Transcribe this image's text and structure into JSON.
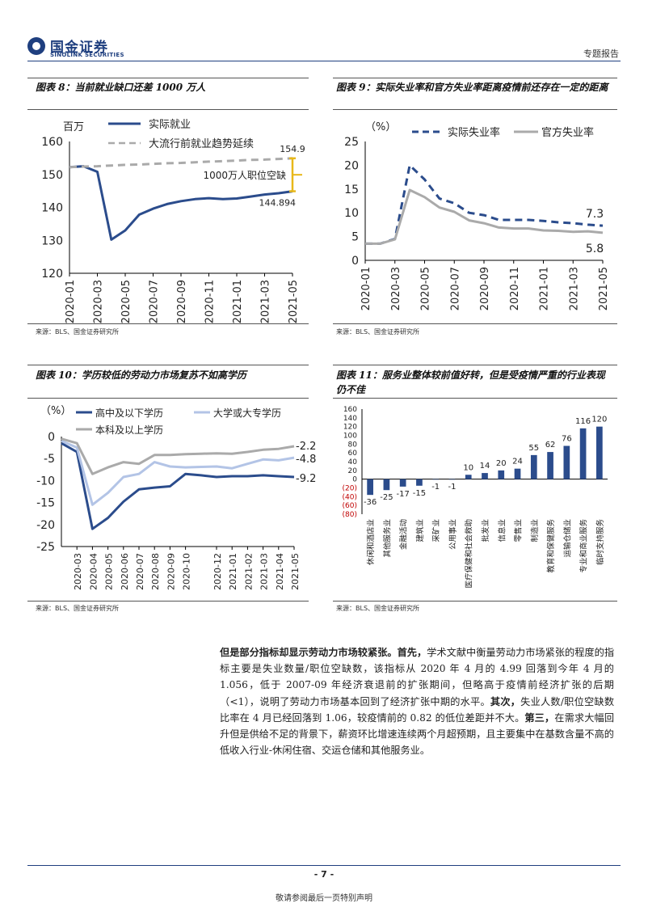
{
  "header": {
    "logo_cn": "国金证券",
    "logo_en": "SINOLINK SECURITIES",
    "report_type": "专题报告"
  },
  "charts": {
    "c8": {
      "title": "图表 8：当前就业缺口还差 1000 万人",
      "source": "来源：BLS、国金证券研究所"
    },
    "c9": {
      "title": "图表 9：实际失业率和官方失业率距离疫情前还存在一定的距离",
      "source": "来源：BLS、国金证券研究所"
    },
    "c10": {
      "title": "图表 10：学历较低的劳动力市场复苏不如高学历",
      "source": "来源：BLS、国金证券研究所"
    },
    "c11": {
      "title": "图表 11：服务业整体较前值好转，但是受疫情严重的行业表现仍不佳",
      "source": "来源：BLS、国金证券研究所"
    }
  },
  "chart_data": [
    {
      "id": "chart8",
      "type": "line",
      "unit_label": "百万",
      "x": [
        "2020-01",
        "2020-02",
        "2020-03",
        "2020-04",
        "2020-05",
        "2020-06",
        "2020-07",
        "2020-08",
        "2020-09",
        "2020-10",
        "2020-11",
        "2020-12",
        "2021-01",
        "2021-02",
        "2021-03",
        "2021-04",
        "2021-05"
      ],
      "xticks": [
        "2020-01",
        "2020-03",
        "2020-05",
        "2020-07",
        "2020-09",
        "2020-11",
        "2021-01",
        "2021-03",
        "2021-05"
      ],
      "ylim": [
        120,
        160
      ],
      "yticks": [
        120,
        130,
        140,
        150,
        160
      ],
      "series": [
        {
          "name": "实际就业",
          "color": "#2b4c8c",
          "dash": false,
          "values": [
            152.2,
            152.5,
            150.8,
            130.2,
            133.0,
            137.8,
            139.6,
            141.0,
            141.9,
            142.5,
            142.8,
            142.5,
            142.7,
            143.3,
            143.9,
            144.3,
            144.894
          ]
        },
        {
          "name": "大流行前就业趋势延续",
          "color": "#aaaaaa",
          "dash": true,
          "values": [
            152.2,
            152.4,
            152.5,
            152.7,
            152.9,
            153.0,
            153.2,
            153.4,
            153.5,
            153.7,
            153.9,
            154.0,
            154.2,
            154.4,
            154.5,
            154.7,
            154.9
          ]
        }
      ],
      "annotations": {
        "top_value": "154.9",
        "bottom_value": "144.894",
        "gap": "1000万人职位空缺"
      }
    },
    {
      "id": "chart9",
      "type": "line",
      "unit_label": "（%）",
      "x": [
        "2020-01",
        "2020-02",
        "2020-03",
        "2020-04",
        "2020-05",
        "2020-06",
        "2020-07",
        "2020-08",
        "2020-09",
        "2020-10",
        "2020-11",
        "2020-12",
        "2021-01",
        "2021-02",
        "2021-03",
        "2021-04",
        "2021-05"
      ],
      "xticks": [
        "2020-01",
        "2020-03",
        "2020-05",
        "2020-07",
        "2020-09",
        "2020-11",
        "2021-01",
        "2021-03",
        "2021-05"
      ],
      "ylim": [
        0,
        25
      ],
      "yticks": [
        0,
        5,
        10,
        15,
        20,
        25
      ],
      "series": [
        {
          "name": "实际失业率",
          "color": "#2b4c8c",
          "dash": true,
          "values": [
            3.5,
            3.5,
            4.5,
            20.0,
            17.0,
            13.0,
            12.0,
            10.0,
            9.5,
            8.5,
            8.5,
            8.5,
            8.3,
            8.0,
            7.8,
            7.5,
            7.3
          ]
        },
        {
          "name": "官方失业率",
          "color": "#aaaaaa",
          "dash": false,
          "values": [
            3.5,
            3.5,
            4.4,
            14.8,
            13.3,
            11.1,
            10.2,
            8.4,
            7.8,
            6.9,
            6.7,
            6.7,
            6.3,
            6.2,
            6.0,
            6.1,
            5.8
          ]
        }
      ],
      "annotations": {
        "end_a": "7.3",
        "end_b": "5.8"
      }
    },
    {
      "id": "chart10",
      "type": "line",
      "unit_label": "（%）",
      "x": [
        "2020-02",
        "2020-03",
        "2020-04",
        "2020-05",
        "2020-06",
        "2020-07",
        "2020-08",
        "2020-09",
        "2020-10",
        "2020-11",
        "2020-12",
        "2021-01",
        "2021-02",
        "2021-03",
        "2021-04",
        "2021-05"
      ],
      "xticks": [
        "2020-03",
        "2020-04",
        "2020-05",
        "2020-06",
        "2020-07",
        "2020-08",
        "2020-09",
        "2020-10",
        "2020-12",
        "2021-01",
        "2021-02",
        "2021-03",
        "2021-04",
        "2021-05"
      ],
      "ylim": [
        -25,
        0
      ],
      "yticks": [
        0,
        -5,
        -10,
        -15,
        -20,
        -25
      ],
      "series": [
        {
          "name": "高中及以下学历",
          "color": "#2b4c8c",
          "values": [
            -1.5,
            -3.5,
            -21.0,
            -18.5,
            -14.8,
            -12.0,
            -11.6,
            -11.3,
            -8.5,
            -8.8,
            -9.2,
            -9.0,
            -9.0,
            -8.8,
            -9.0,
            -9.2
          ]
        },
        {
          "name": "大学或大专学历",
          "color": "#b3c4e6",
          "values": [
            -1.0,
            -2.5,
            -15.5,
            -12.8,
            -9.2,
            -8.5,
            -5.8,
            -6.8,
            -7.0,
            -6.9,
            -6.8,
            -7.2,
            -6.2,
            -5.2,
            -5.4,
            -4.8
          ]
        },
        {
          "name": "本科及以上学历",
          "color": "#aaaaaa",
          "values": [
            -0.5,
            -1.5,
            -8.5,
            -7.0,
            -5.8,
            -6.2,
            -4.2,
            -4.2,
            -4.0,
            -3.9,
            -3.8,
            -3.9,
            -3.5,
            -3.0,
            -2.8,
            -2.2
          ]
        }
      ],
      "annotations": {
        "end_top": "-2.2",
        "end_mid": "-4.8",
        "end_bot": "-9.2"
      }
    },
    {
      "id": "chart11",
      "type": "bar",
      "ylim": [
        -80,
        160
      ],
      "yticks": [
        "160",
        "140",
        "120",
        "100",
        "80",
        "60",
        "40",
        "20",
        "0",
        "(20)",
        "(40)",
        "(60)",
        "(80)"
      ],
      "ytick_values": [
        160,
        140,
        120,
        100,
        80,
        60,
        40,
        20,
        0,
        -20,
        -40,
        -60,
        -80
      ],
      "categories": [
        "休闲和酒店业",
        "其他服务业",
        "金融活动",
        "建筑业",
        "采矿业",
        "公用事业",
        "医疗保健和社会救助",
        "批发业",
        "信息业",
        "零售业",
        "制造业",
        "教育和保健服务",
        "运输仓储业",
        "专业和商业服务",
        "临时支持服务"
      ],
      "values": [
        -36,
        -25,
        -17,
        -15,
        -1,
        -1,
        10,
        14,
        20,
        24,
        55,
        62,
        76,
        116,
        120
      ],
      "color": "#2b4c8c"
    }
  ],
  "body": {
    "p1_lead": "但是部分指标却显示劳动力市场较紧张。",
    "p1_first": "首先，",
    "p1_text1": "学术文献中衡量劳动力市场紧张的程度的指标主要是失业数量/职位空缺数，该指标从 2020 年 4 月的 4.99 回落到今年 4 月的 1.056，低于 2007-09 年经济衰退前的扩张期间，但略高于疫情前经济扩张的后期（<1），说明了劳动力市场基本回到了经济扩张中期的水平。",
    "p1_second": "其次，",
    "p1_text2": "失业人数/职位空缺数比率在 4 月已经回落到 1.06，较疫情前的 0.82 的低位差距并不大。",
    "p1_third": "第三，",
    "p1_text3": "在需求大幅回升但是供给不足的背景下，薪资环比增速连续两个月超预期，且主要集中在基数含量不高的低收入行业-休闲住宿、交运仓储和其他服务业。"
  },
  "footer": {
    "page_number": "- 7 -",
    "disclaimer": "敬请参阅最后一页特别声明"
  }
}
